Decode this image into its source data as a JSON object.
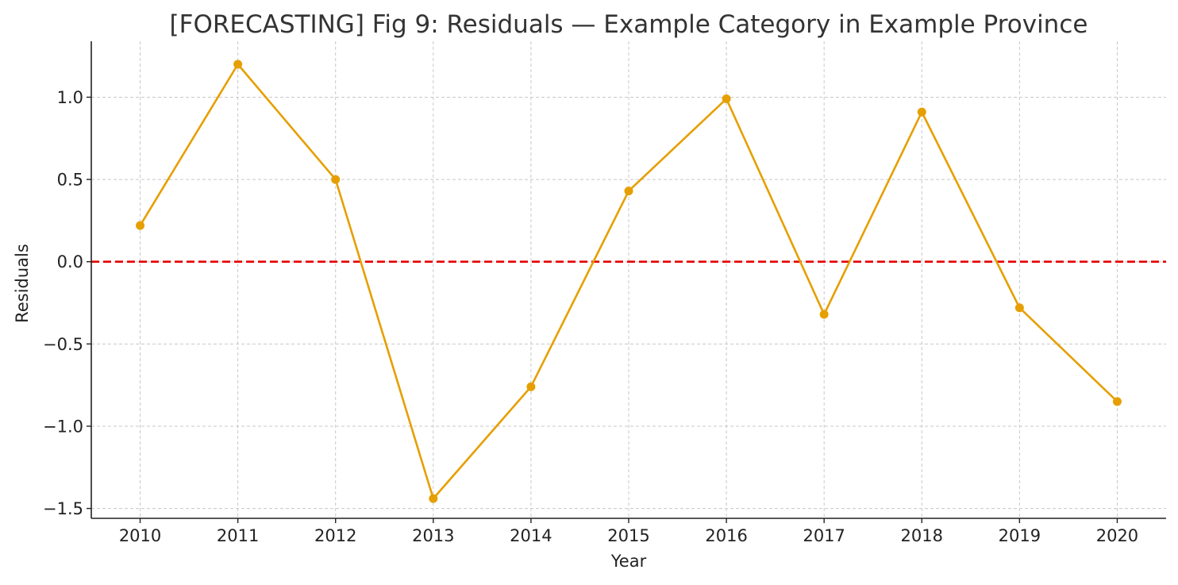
{
  "chart_data": {
    "type": "line",
    "title": "[FORECASTING] Fig 9: Residuals — Example Category in Example Province",
    "xlabel": "Year",
    "ylabel": "Residuals",
    "x": [
      2010,
      2011,
      2012,
      2013,
      2014,
      2015,
      2016,
      2017,
      2018,
      2019,
      2020
    ],
    "x_tick_labels": [
      "2010",
      "2011",
      "2012",
      "2013",
      "2014",
      "2015",
      "2016",
      "2017",
      "2018",
      "2019",
      "2020"
    ],
    "series": [
      {
        "values": [
          0.22,
          1.2,
          0.5,
          -1.44,
          -0.76,
          0.43,
          0.99,
          -0.32,
          0.91,
          -0.28,
          -0.85
        ],
        "color": "#E69F00",
        "marker": "circle"
      }
    ],
    "xlim": [
      2009.5,
      2020.5
    ],
    "ylim": [
      -1.56,
      1.34
    ],
    "y_ticks": [
      1.0,
      0.5,
      0.0,
      -0.5,
      -1.0,
      -1.5
    ],
    "y_tick_labels": [
      "1.0",
      "0.5",
      "0.0",
      "−0.5",
      "−1.0",
      "−1.5"
    ],
    "reference_line": {
      "y": 0,
      "color": "#E50000",
      "style": "dashed"
    },
    "grid": true,
    "grid_style": "dashed",
    "legend": "none",
    "spines": "left-bottom"
  }
}
